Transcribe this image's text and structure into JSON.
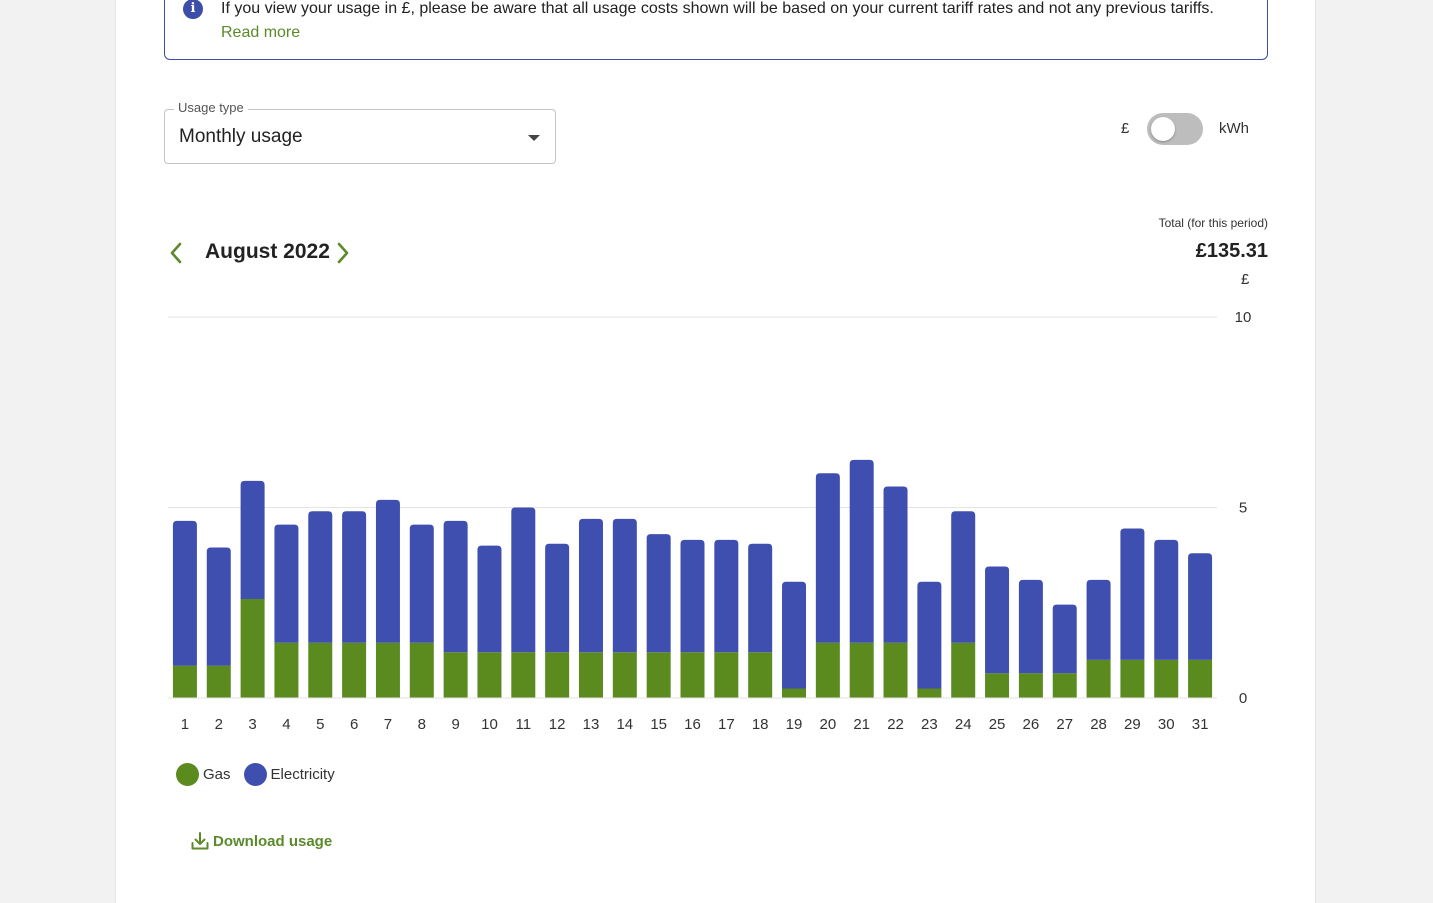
{
  "info": {
    "message": "If you view your usage in £, please be aware that all usage costs shown will be based on your current tariff rates and not any previous tariffs.",
    "link_label": "Read more"
  },
  "usage_type": {
    "label": "Usage type",
    "value": "Monthly usage"
  },
  "unit_toggle": {
    "left_label": "£",
    "right_label": "kWh",
    "selected": "£"
  },
  "period": {
    "label": "August 2022"
  },
  "total": {
    "label": "Total (for this period)",
    "value": "£135.31"
  },
  "colors": {
    "gas": "#5b8a1e",
    "electricity": "#3f4fb0",
    "accent": "#5b8a2a",
    "info_border": "#3d4ea8"
  },
  "legend": {
    "gas": "Gas",
    "electricity": "Electricity"
  },
  "download": {
    "label": "Download usage"
  },
  "chart_data": {
    "type": "bar",
    "stacked": true,
    "unit_label": "£",
    "categories": [
      "1",
      "2",
      "3",
      "4",
      "5",
      "6",
      "7",
      "8",
      "9",
      "10",
      "11",
      "12",
      "13",
      "14",
      "15",
      "16",
      "17",
      "18",
      "19",
      "20",
      "21",
      "22",
      "23",
      "24",
      "25",
      "26",
      "27",
      "28",
      "29",
      "30",
      "31"
    ],
    "series": [
      {
        "name": "Gas",
        "values": [
          0.85,
          0.85,
          2.6,
          1.45,
          1.45,
          1.45,
          1.45,
          1.45,
          1.2,
          1.2,
          1.2,
          1.2,
          1.2,
          1.2,
          1.2,
          1.2,
          1.2,
          1.2,
          0.25,
          1.45,
          1.45,
          1.45,
          0.25,
          1.45,
          0.65,
          0.65,
          0.65,
          1.0,
          1.0,
          1.0,
          1.0
        ]
      },
      {
        "name": "Electricity",
        "values": [
          3.8,
          3.1,
          3.1,
          3.1,
          3.45,
          3.45,
          3.75,
          3.1,
          3.45,
          2.8,
          3.8,
          2.85,
          3.5,
          3.5,
          3.1,
          2.95,
          2.95,
          2.85,
          2.8,
          4.45,
          4.8,
          4.1,
          2.8,
          3.45,
          2.8,
          2.45,
          1.8,
          2.1,
          3.45,
          3.15,
          2.8
        ]
      }
    ],
    "xlabel": "",
    "ylabel": "",
    "ylim": [
      0,
      10
    ],
    "yticks": [
      0,
      5,
      10
    ],
    "grid": true,
    "legend_position": "bottom-left"
  }
}
